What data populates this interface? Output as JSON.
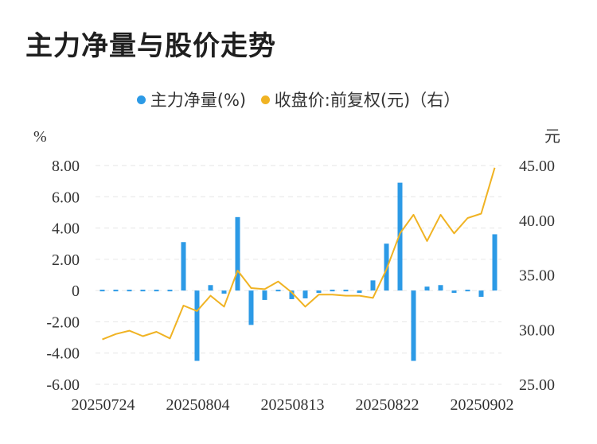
{
  "title": "主力净量与股价走势",
  "legend": [
    {
      "label": "主力净量(%)",
      "color": "#2c9ae6"
    },
    {
      "label": "收盘价:前复权(元)（右）",
      "color": "#f0b323"
    }
  ],
  "chart_data": {
    "type": "bar+line",
    "left_axis": {
      "unit": "%",
      "ticks": [
        "8.00",
        "6.00",
        "4.00",
        "2.00",
        "0",
        "-2.00",
        "-4.00",
        "-6.00"
      ],
      "ylim": [
        -6,
        8
      ]
    },
    "right_axis": {
      "unit": "元",
      "ticks": [
        "45.00",
        "40.00",
        "35.00",
        "30.00",
        "25.00"
      ],
      "ylim": [
        25,
        45
      ]
    },
    "x_tick_labels": [
      "20250724",
      "20250804",
      "20250813",
      "20250822",
      "20250902"
    ],
    "grid": true,
    "series": [
      {
        "name": "主力净量(%)",
        "type": "bar",
        "color": "#2c9ae6",
        "values": [
          0.05,
          0.0,
          0.05,
          -0.05,
          0.1,
          -0.05,
          3.1,
          -4.5,
          0.35,
          -0.2,
          4.7,
          -2.2,
          -0.6,
          0.0,
          -0.55,
          -0.5,
          -0.15,
          -0.05,
          -0.1,
          -0.15,
          0.65,
          3.0,
          6.9,
          -4.5,
          0.25,
          0.35,
          -0.15,
          0.1,
          -0.4,
          3.6
        ]
      },
      {
        "name": "收盘价:前复权(元)（右）",
        "type": "line",
        "color": "#f0b323",
        "values": [
          29.1,
          29.6,
          29.9,
          29.4,
          29.8,
          29.2,
          32.2,
          31.7,
          33.1,
          32.1,
          35.4,
          33.8,
          33.7,
          34.4,
          33.4,
          32.1,
          33.2,
          33.2,
          33.1,
          33.1,
          32.9,
          35.5,
          38.8,
          40.5,
          38.1,
          40.5,
          38.8,
          40.2,
          40.6,
          44.8
        ]
      }
    ]
  }
}
